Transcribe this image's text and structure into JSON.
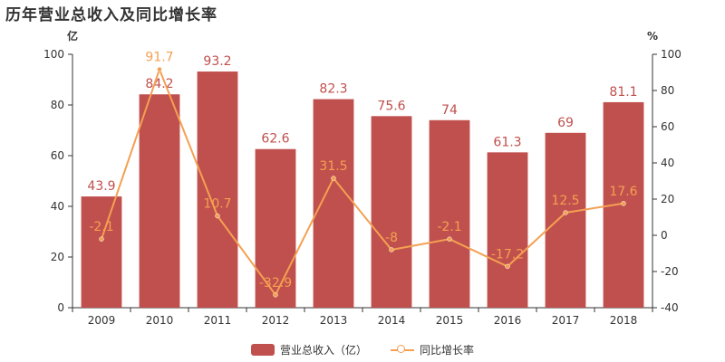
{
  "title": "历年营业总收入及同比增长率",
  "colors": {
    "bar": "#c0504d",
    "line": "#f4a052",
    "axis": "#333333"
  },
  "chart_data": {
    "type": "bar",
    "categories": [
      "2009",
      "2010",
      "2011",
      "2012",
      "2013",
      "2014",
      "2015",
      "2016",
      "2017",
      "2018"
    ],
    "series": [
      {
        "name": "营业总收入（亿）",
        "type": "bar",
        "axis": "left",
        "values": [
          43.9,
          84.2,
          93.2,
          62.6,
          82.3,
          75.6,
          74,
          61.3,
          69,
          81.1
        ],
        "labels": [
          "43.9",
          "84.2",
          "93.2",
          "62.6",
          "82.3",
          "75.6",
          "74",
          "61.3",
          "69",
          "81.1"
        ]
      },
      {
        "name": "同比增长率",
        "type": "line",
        "axis": "right",
        "values": [
          -2.1,
          91.7,
          10.7,
          -32.9,
          31.5,
          -8,
          -2.1,
          -17.2,
          12.5,
          17.6
        ],
        "labels": [
          "-2.1",
          "91.7",
          "10.7",
          "-32.9",
          "31.5",
          "-8",
          "-2.1",
          "-17.2",
          "12.5",
          "17.6"
        ]
      }
    ],
    "y_left": {
      "unit": "亿",
      "ylim": [
        0,
        100
      ],
      "ticks": [
        "0",
        "20",
        "40",
        "60",
        "80",
        "100"
      ]
    },
    "y_right": {
      "unit": "%",
      "ylim": [
        -40,
        100
      ],
      "ticks": [
        "-40",
        "-20",
        "0",
        "20",
        "40",
        "60",
        "80",
        "100"
      ]
    },
    "grid": false,
    "legend": "bottom-center"
  },
  "legend": {
    "bar_label": "营业总收入（亿）",
    "line_label": "同比增长率"
  }
}
